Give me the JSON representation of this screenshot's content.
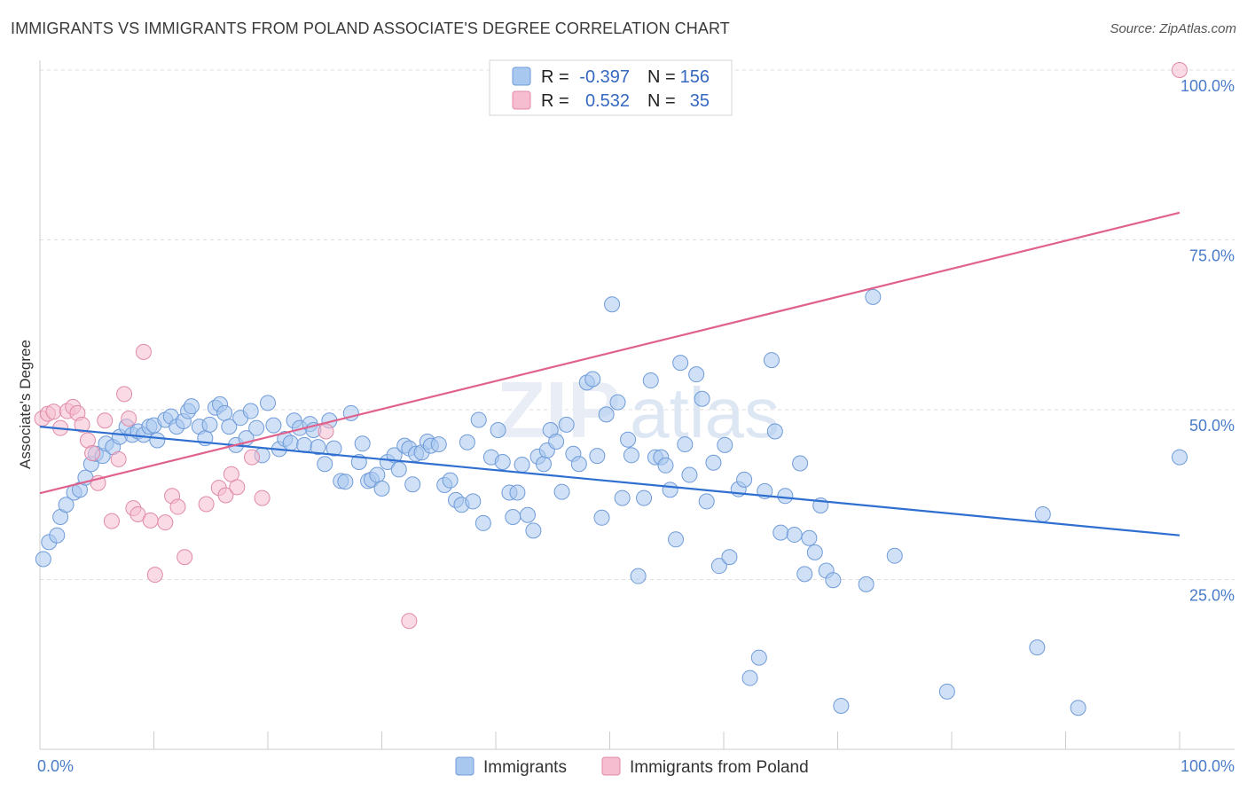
{
  "title": "IMMIGRANTS VS IMMIGRANTS FROM POLAND ASSOCIATE'S DEGREE CORRELATION CHART",
  "source": "Source: ZipAtlas.com",
  "watermark": {
    "zip": "ZIP",
    "atlas": "atlas"
  },
  "colors": {
    "blue_fill": "#a9c8f0",
    "blue_stroke": "#6f9bd8",
    "blue_line": "#2f6fd0",
    "pink_fill": "#f6bdd0",
    "pink_stroke": "#e08aa8",
    "pink_line": "#e0628c",
    "grid": "#dddddd",
    "axis_text": "#4a7cc9"
  },
  "legend": {
    "rows": [
      {
        "r_label": "R =",
        "r_value": "-0.397",
        "n_label": "N =",
        "n_value": "156",
        "color": "blue"
      },
      {
        "r_label": "R =",
        "r_value": "0.532",
        "n_label": "N =",
        "n_value": "35",
        "color": "pink"
      }
    ]
  },
  "bottom_legend": [
    "Immigrants",
    "Immigrants from Poland"
  ],
  "chart_data": {
    "type": "scatter",
    "title": "IMMIGRANTS VS IMMIGRANTS FROM POLAND ASSOCIATE'S DEGREE CORRELATION CHART",
    "xlabel": "",
    "ylabel": "Associate's Degree",
    "xlim": [
      0,
      100
    ],
    "ylim": [
      0,
      100
    ],
    "x_tick_labels": [
      "0.0%",
      "100.0%"
    ],
    "y_tick_labels": [
      "100.0%",
      "75.0%",
      "50.0%",
      "25.0%"
    ],
    "y_tick_values": [
      100,
      75,
      50,
      25
    ],
    "grid": true,
    "legend_placement": "top-center",
    "series": [
      {
        "name": "Immigrants",
        "color": "blue",
        "trend": {
          "x": [
            0,
            100
          ],
          "y": [
            47.5,
            31.5
          ]
        },
        "points": [
          [
            0.3,
            28
          ],
          [
            0.8,
            30.5
          ],
          [
            1.5,
            31.5
          ],
          [
            1.8,
            34.2
          ],
          [
            2.3,
            36
          ],
          [
            3,
            37.8
          ],
          [
            3.5,
            38.2
          ],
          [
            4,
            40
          ],
          [
            4.5,
            42
          ],
          [
            4.9,
            43.5
          ],
          [
            5.5,
            43.2
          ],
          [
            5.8,
            45
          ],
          [
            6.4,
            44.5
          ],
          [
            7,
            46
          ],
          [
            7.6,
            47.5
          ],
          [
            8.1,
            46.3
          ],
          [
            8.6,
            46.8
          ],
          [
            9.1,
            46.3
          ],
          [
            9.6,
            47.5
          ],
          [
            10,
            47.7
          ],
          [
            10.3,
            45.5
          ],
          [
            11,
            48.5
          ],
          [
            11.5,
            49
          ],
          [
            12,
            47.5
          ],
          [
            12.6,
            48.3
          ],
          [
            13,
            49.8
          ],
          [
            13.3,
            50.5
          ],
          [
            14,
            47.5
          ],
          [
            14.5,
            45.8
          ],
          [
            14.9,
            47.8
          ],
          [
            15.4,
            50.3
          ],
          [
            15.8,
            50.8
          ],
          [
            16.2,
            49.5
          ],
          [
            16.6,
            47.5
          ],
          [
            17.2,
            44.8
          ],
          [
            17.6,
            48.8
          ],
          [
            18.1,
            45.8
          ],
          [
            18.5,
            49.8
          ],
          [
            19,
            47.3
          ],
          [
            19.5,
            43.3
          ],
          [
            20,
            51
          ],
          [
            20.5,
            47.7
          ],
          [
            21,
            44.2
          ],
          [
            21.5,
            45.7
          ],
          [
            22,
            45.1
          ],
          [
            22.3,
            48.4
          ],
          [
            22.8,
            47.3
          ],
          [
            23.2,
            44.8
          ],
          [
            23.7,
            47.9
          ],
          [
            24,
            47
          ],
          [
            24.4,
            44.5
          ],
          [
            25,
            42
          ],
          [
            25.4,
            48.4
          ],
          [
            25.8,
            44.3
          ],
          [
            26.4,
            39.5
          ],
          [
            26.8,
            39.4
          ],
          [
            27.3,
            49.5
          ],
          [
            28,
            42.3
          ],
          [
            28.3,
            45
          ],
          [
            28.8,
            39.5
          ],
          [
            29.1,
            39.7
          ],
          [
            29.6,
            40.4
          ],
          [
            30,
            38.4
          ],
          [
            30.5,
            42.3
          ],
          [
            31.1,
            43.3
          ],
          [
            31.5,
            41.2
          ],
          [
            32,
            44.7
          ],
          [
            32.4,
            44.3
          ],
          [
            32.7,
            39
          ],
          [
            33,
            43.5
          ],
          [
            33.5,
            43.7
          ],
          [
            34,
            45.3
          ],
          [
            34.3,
            44.7
          ],
          [
            35,
            44.9
          ],
          [
            35.5,
            38.9
          ],
          [
            36,
            39.6
          ],
          [
            36.5,
            36.7
          ],
          [
            37,
            36
          ],
          [
            37.5,
            45.2
          ],
          [
            38,
            36.5
          ],
          [
            38.5,
            48.5
          ],
          [
            38.9,
            33.3
          ],
          [
            39.6,
            43
          ],
          [
            40.2,
            47
          ],
          [
            40.6,
            42.3
          ],
          [
            41.2,
            37.8
          ],
          [
            41.5,
            34.2
          ],
          [
            41.9,
            37.8
          ],
          [
            42.3,
            41.9
          ],
          [
            42.8,
            34.5
          ],
          [
            43.3,
            32.2
          ],
          [
            43.7,
            43.1
          ],
          [
            44.2,
            42
          ],
          [
            44.5,
            44
          ],
          [
            44.8,
            47
          ],
          [
            45.3,
            45.3
          ],
          [
            45.8,
            37.9
          ],
          [
            46.2,
            47.8
          ],
          [
            46.8,
            43.5
          ],
          [
            47.3,
            42
          ],
          [
            48,
            54
          ],
          [
            48.5,
            54.5
          ],
          [
            48.9,
            43.2
          ],
          [
            49.3,
            34.1
          ],
          [
            49.7,
            49.3
          ],
          [
            50.2,
            65.5
          ],
          [
            50.7,
            51.1
          ],
          [
            51.1,
            37
          ],
          [
            51.6,
            45.6
          ],
          [
            51.9,
            43.3
          ],
          [
            52.5,
            25.5
          ],
          [
            53,
            37
          ],
          [
            53.6,
            54.3
          ],
          [
            54,
            43
          ],
          [
            54.5,
            43
          ],
          [
            54.9,
            41.8
          ],
          [
            55.3,
            38.2
          ],
          [
            55.8,
            30.9
          ],
          [
            56.2,
            56.9
          ],
          [
            56.6,
            44.9
          ],
          [
            57,
            40.4
          ],
          [
            57.6,
            55.2
          ],
          [
            58.1,
            51.6
          ],
          [
            58.5,
            36.5
          ],
          [
            59.1,
            42.2
          ],
          [
            59.6,
            27
          ],
          [
            60.1,
            44.8
          ],
          [
            60.5,
            28.3
          ],
          [
            61.3,
            38.3
          ],
          [
            61.8,
            39.7
          ],
          [
            62.3,
            10.5
          ],
          [
            63.1,
            13.5
          ],
          [
            63.6,
            38
          ],
          [
            64.2,
            57.3
          ],
          [
            64.5,
            46.8
          ],
          [
            65,
            31.9
          ],
          [
            65.4,
            37.3
          ],
          [
            66.2,
            31.6
          ],
          [
            66.7,
            42.1
          ],
          [
            67.1,
            25.8
          ],
          [
            67.5,
            31.1
          ],
          [
            68,
            29
          ],
          [
            68.5,
            35.9
          ],
          [
            69,
            26.3
          ],
          [
            69.6,
            24.9
          ],
          [
            70.3,
            6.4
          ],
          [
            72.5,
            24.3
          ],
          [
            73.1,
            66.6
          ],
          [
            75,
            28.5
          ],
          [
            79.6,
            8.5
          ],
          [
            87.5,
            15
          ],
          [
            88,
            34.6
          ],
          [
            91.1,
            6.1
          ],
          [
            100,
            43
          ]
        ]
      },
      {
        "name": "Immigrants from Poland",
        "color": "pink",
        "trend": {
          "x": [
            0,
            100
          ],
          "y": [
            37.7,
            79
          ]
        },
        "points": [
          [
            0.2,
            48.7
          ],
          [
            0.7,
            49.4
          ],
          [
            1.2,
            49.7
          ],
          [
            1.8,
            47.3
          ],
          [
            2.4,
            49.8
          ],
          [
            2.9,
            50.4
          ],
          [
            3.3,
            49.5
          ],
          [
            3.7,
            47.8
          ],
          [
            4.2,
            45.5
          ],
          [
            4.6,
            43.6
          ],
          [
            5.1,
            39.2
          ],
          [
            5.7,
            48.4
          ],
          [
            6.3,
            33.6
          ],
          [
            6.9,
            42.7
          ],
          [
            7.4,
            52.3
          ],
          [
            7.8,
            48.7
          ],
          [
            8.2,
            35.5
          ],
          [
            8.6,
            34.6
          ],
          [
            9.1,
            58.5
          ],
          [
            9.7,
            33.7
          ],
          [
            10.1,
            25.7
          ],
          [
            11,
            33.4
          ],
          [
            11.6,
            37.3
          ],
          [
            12.1,
            35.7
          ],
          [
            12.7,
            28.3
          ],
          [
            14.6,
            36.1
          ],
          [
            15.7,
            38.5
          ],
          [
            16.3,
            37.4
          ],
          [
            16.8,
            40.5
          ],
          [
            17.3,
            38.6
          ],
          [
            18.6,
            43
          ],
          [
            19.5,
            37
          ],
          [
            25.1,
            46.8
          ],
          [
            32.4,
            18.9
          ],
          [
            100,
            100
          ]
        ]
      }
    ]
  }
}
